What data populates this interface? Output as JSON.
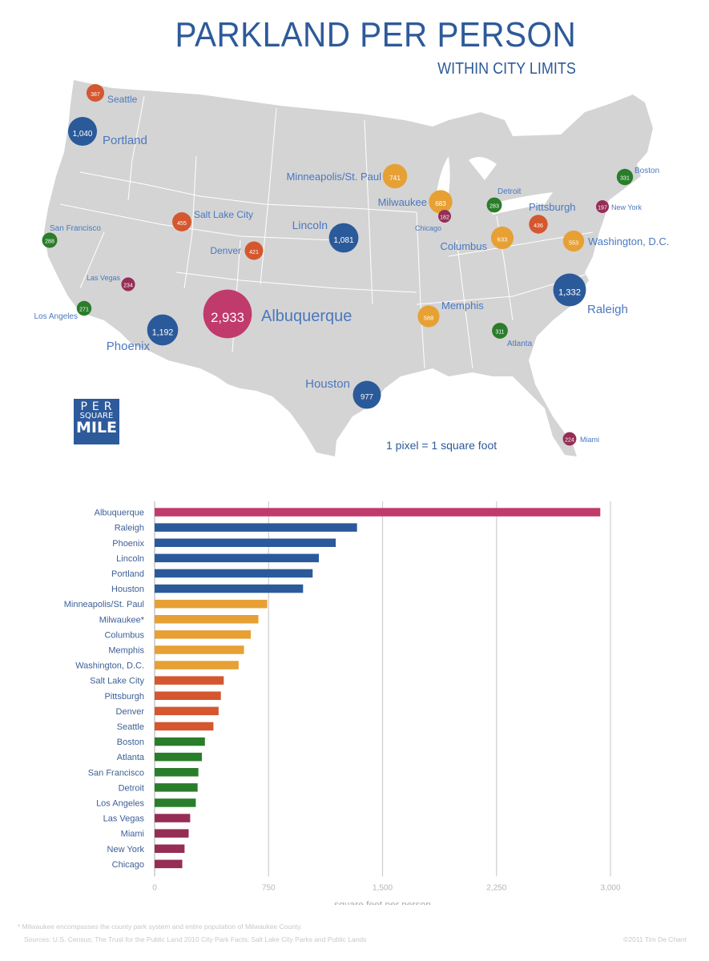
{
  "header": {
    "title": "PARKLAND PER PERSON",
    "subtitle": "WITHIN CITY LIMITS"
  },
  "logo": {
    "line1": "PER",
    "line2": "SQUARE",
    "line3": "MILE"
  },
  "map": {
    "scale_note": "1 pixel = 1 square foot",
    "colors": {
      "magenta": "#c03a6b",
      "blue": "#2b5a9a",
      "orange_yellow": "#e6a034",
      "orange_red": "#d4572f",
      "green": "#2a7d2a",
      "maroon": "#962d55",
      "land": "#d4d4d4",
      "label": "#4a78c0"
    },
    "cities": [
      {
        "name": "Seattle",
        "value_label": "387",
        "color": "orange_red"
      },
      {
        "name": "Portland",
        "value_label": "1,040",
        "color": "blue"
      },
      {
        "name": "San Francisco",
        "value_label": "288",
        "color": "green"
      },
      {
        "name": "Salt Lake City",
        "value_label": "455",
        "color": "orange_red"
      },
      {
        "name": "Denver",
        "value_label": "421",
        "color": "orange_red"
      },
      {
        "name": "Las Vegas",
        "value_label": "234",
        "color": "maroon"
      },
      {
        "name": "Los Angeles",
        "value_label": "271",
        "color": "green"
      },
      {
        "name": "Phoenix",
        "value_label": "1,192",
        "color": "blue"
      },
      {
        "name": "Albuquerque",
        "value_label": "2,933",
        "color": "magenta"
      },
      {
        "name": "Minneapolis/St. Paul",
        "value_label": "741",
        "color": "orange_yellow"
      },
      {
        "name": "Lincoln",
        "value_label": "1,081",
        "color": "blue"
      },
      {
        "name": "Milwaukee",
        "value_label": "683",
        "color": "orange_yellow"
      },
      {
        "name": "Chicago",
        "value_label": "182",
        "color": "maroon"
      },
      {
        "name": "Detroit",
        "value_label": "283",
        "color": "green"
      },
      {
        "name": "Columbus",
        "value_label": "633",
        "color": "orange_yellow"
      },
      {
        "name": "Pittsburgh",
        "value_label": "436",
        "color": "orange_red"
      },
      {
        "name": "Boston",
        "value_label": "331",
        "color": "green"
      },
      {
        "name": "New York",
        "value_label": "197",
        "color": "maroon"
      },
      {
        "name": "Washington, D.C.",
        "value_label": "553",
        "color": "orange_yellow"
      },
      {
        "name": "Memphis",
        "value_label": "588",
        "color": "orange_yellow"
      },
      {
        "name": "Atlanta",
        "value_label": "311",
        "color": "green"
      },
      {
        "name": "Raleigh",
        "value_label": "1,332",
        "color": "blue"
      },
      {
        "name": "Houston",
        "value_label": "977",
        "color": "blue"
      },
      {
        "name": "Miami",
        "value_label": "224",
        "color": "maroon"
      }
    ]
  },
  "chart_data": {
    "type": "bar",
    "orientation": "horizontal",
    "title": "",
    "xlabel": "square feet per person",
    "ylabel": "",
    "xlim": [
      0,
      3000
    ],
    "xticks": [
      0,
      750,
      1500,
      2250,
      3000
    ],
    "xtick_labels": [
      "0",
      "750",
      "1,500",
      "2,250",
      "3,000"
    ],
    "grid": true,
    "categories": [
      "Albuquerque",
      "Raleigh",
      "Phoenix",
      "Lincoln",
      "Portland",
      "Houston",
      "Minneapolis/St. Paul",
      "Milwaukee*",
      "Columbus",
      "Memphis",
      "Washington, D.C.",
      "Salt Lake City",
      "Pittsburgh",
      "Denver",
      "Seattle",
      "Boston",
      "Atlanta",
      "San Francisco",
      "Detroit",
      "Los Angeles",
      "Las Vegas",
      "Miami",
      "New York",
      "Chicago"
    ],
    "values": [
      2933,
      1332,
      1192,
      1081,
      1040,
      977,
      741,
      683,
      633,
      588,
      553,
      455,
      436,
      421,
      387,
      331,
      311,
      288,
      283,
      271,
      234,
      224,
      197,
      182
    ],
    "bar_colors": [
      "#c03a6b",
      "#2b5a9a",
      "#2b5a9a",
      "#2b5a9a",
      "#2b5a9a",
      "#2b5a9a",
      "#e6a034",
      "#e6a034",
      "#e6a034",
      "#e6a034",
      "#e6a034",
      "#d4572f",
      "#d4572f",
      "#d4572f",
      "#d4572f",
      "#2a7d2a",
      "#2a7d2a",
      "#2a7d2a",
      "#2a7d2a",
      "#2a7d2a",
      "#962d55",
      "#962d55",
      "#962d55",
      "#962d55"
    ]
  },
  "footer": {
    "note": "* Milwaukee encompasses the county park system and entire population of Milwaukee County.",
    "sources": "Sources: U.S. Census; The Trust for the Public Land 2010 City Park Facts; Salt Lake City Parks and Public Lands",
    "credit": "©2011 Tim De Chant"
  }
}
